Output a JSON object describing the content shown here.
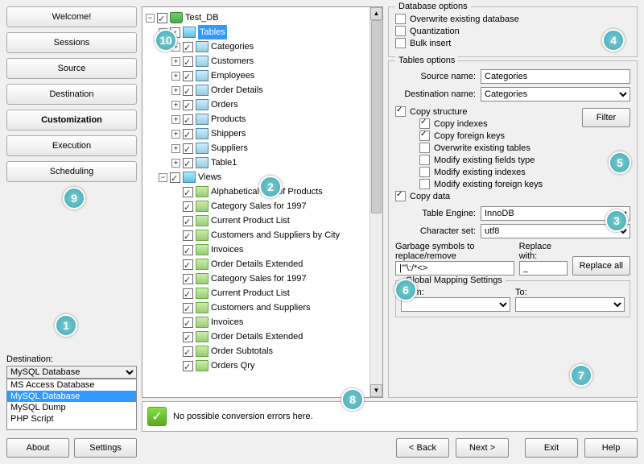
{
  "nav": {
    "welcome": "Welcome!",
    "sessions": "Sessions",
    "source": "Source",
    "destination": "Destination",
    "customization": "Customization",
    "execution": "Execution",
    "scheduling": "Scheduling"
  },
  "destination": {
    "label": "Destination:",
    "selected": "MySQL Database",
    "options": [
      "MS Access Database",
      "MySQL Database",
      "MySQL Dump",
      "PHP Script"
    ]
  },
  "bottom": {
    "about": "About",
    "settings": "Settings"
  },
  "tree": {
    "db": "Test_DB",
    "tables_label": "Tables",
    "tables": [
      "Categories",
      "Customers",
      "Employees",
      "Order Details",
      "Orders",
      "Products",
      "Shippers",
      "Suppliers",
      "Table1"
    ],
    "views_label": "Views",
    "views": [
      "Alphabetical List of Products",
      "Category Sales for 1997",
      "Current Product List",
      "Customers and Suppliers by City",
      "Invoices",
      "Order Details Extended",
      "Category Sales for 1997",
      "Current Product List",
      "Customers and Suppliers",
      "Invoices",
      "Order Details Extended",
      "Order Subtotals",
      "Orders Qry"
    ]
  },
  "db_options": {
    "title": "Database options",
    "overwrite": "Overwrite existing database",
    "quantization": "Quantization",
    "bulk": "Bulk insert"
  },
  "table_options": {
    "title": "Tables options",
    "source_name_label": "Source name:",
    "source_name": "Categories",
    "dest_name_label": "Destination name:",
    "dest_name": "Categories",
    "copy_structure": "Copy structure",
    "copy_indexes": "Copy indexes",
    "copy_fk": "Copy foreign keys",
    "overwrite_tables": "Overwrite existing tables",
    "modify_fields": "Modify existing fields type",
    "modify_indexes": "Modify existing indexes",
    "modify_fk": "Modify existing foreign keys",
    "copy_data": "Copy data",
    "table_engine_label": "Table Engine:",
    "table_engine": "InnoDB",
    "charset_label": "Character set:",
    "charset": "utf8",
    "garbage_label": "Garbage symbols to replace/remove",
    "garbage_value": "|'\"\\:/*<>",
    "replace_with_label": "Replace with:",
    "replace_with": "_",
    "replace_all": "Replace all",
    "global_mapping": "Global Mapping Settings",
    "from_label": "From:",
    "to_label": "To:",
    "filter": "Filter"
  },
  "status": "No possible conversion errors here.",
  "footer": {
    "back": "< Back",
    "next": "Next >",
    "exit": "Exit",
    "help": "Help"
  },
  "callouts": [
    "1",
    "2",
    "3",
    "4",
    "5",
    "6",
    "7",
    "8",
    "9",
    "10"
  ]
}
